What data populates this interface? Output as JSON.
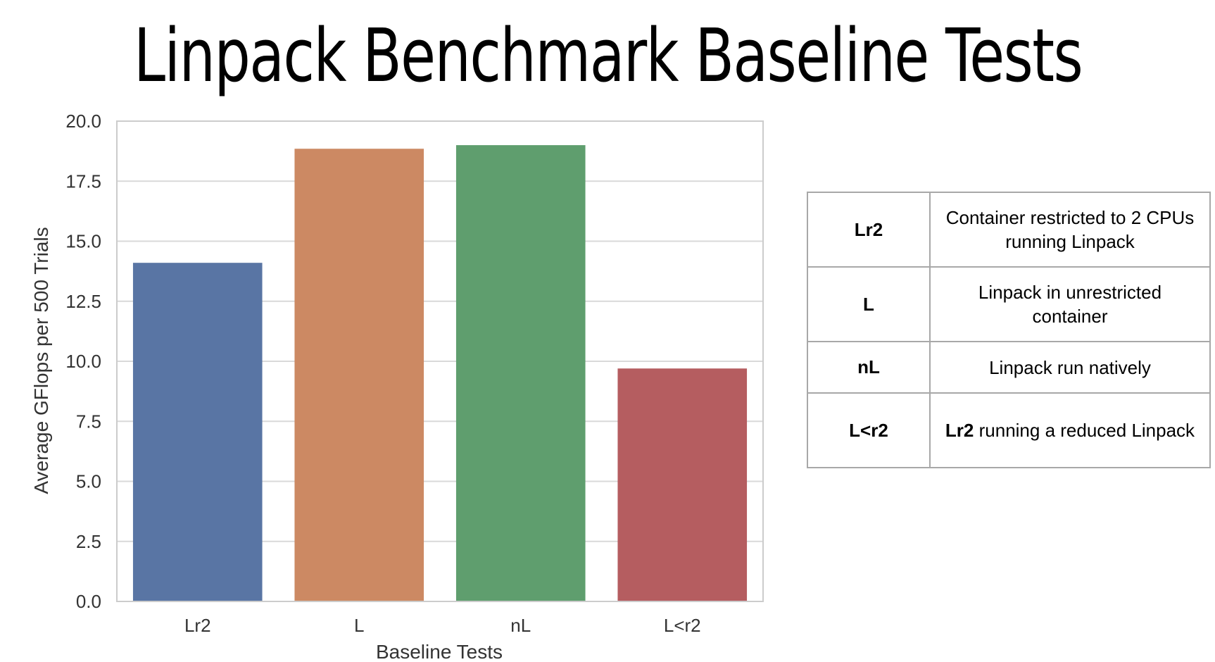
{
  "chart_data": {
    "type": "bar",
    "title": "Linpack Benchmark Baseline Tests",
    "xlabel": "Baseline Tests",
    "ylabel": "Average GFlops per 500 Trials",
    "categories": [
      "Lr2",
      "L",
      "nL",
      "L<r2"
    ],
    "values": [
      14.1,
      18.85,
      19.0,
      9.7
    ],
    "colors": [
      "#5975a4",
      "#cc8963",
      "#5f9e6e",
      "#b55d60"
    ],
    "ylim": [
      0,
      20
    ],
    "yticks": [
      "0.0",
      "2.5",
      "5.0",
      "7.5",
      "10.0",
      "12.5",
      "15.0",
      "17.5",
      "20.0"
    ],
    "grid": true,
    "legend": "none"
  },
  "legend_table": {
    "rows": [
      {
        "code": "Lr2",
        "desc_bold": "",
        "desc": "Container restricted to 2 CPUs running Linpack"
      },
      {
        "code": "L",
        "desc_bold": "",
        "desc": "Linpack in unrestricted container"
      },
      {
        "code": "nL",
        "desc_bold": "",
        "desc": "Linpack run natively"
      },
      {
        "code": "L<r2",
        "desc_bold": "Lr2",
        "desc": " running a reduced Linpack"
      }
    ]
  }
}
